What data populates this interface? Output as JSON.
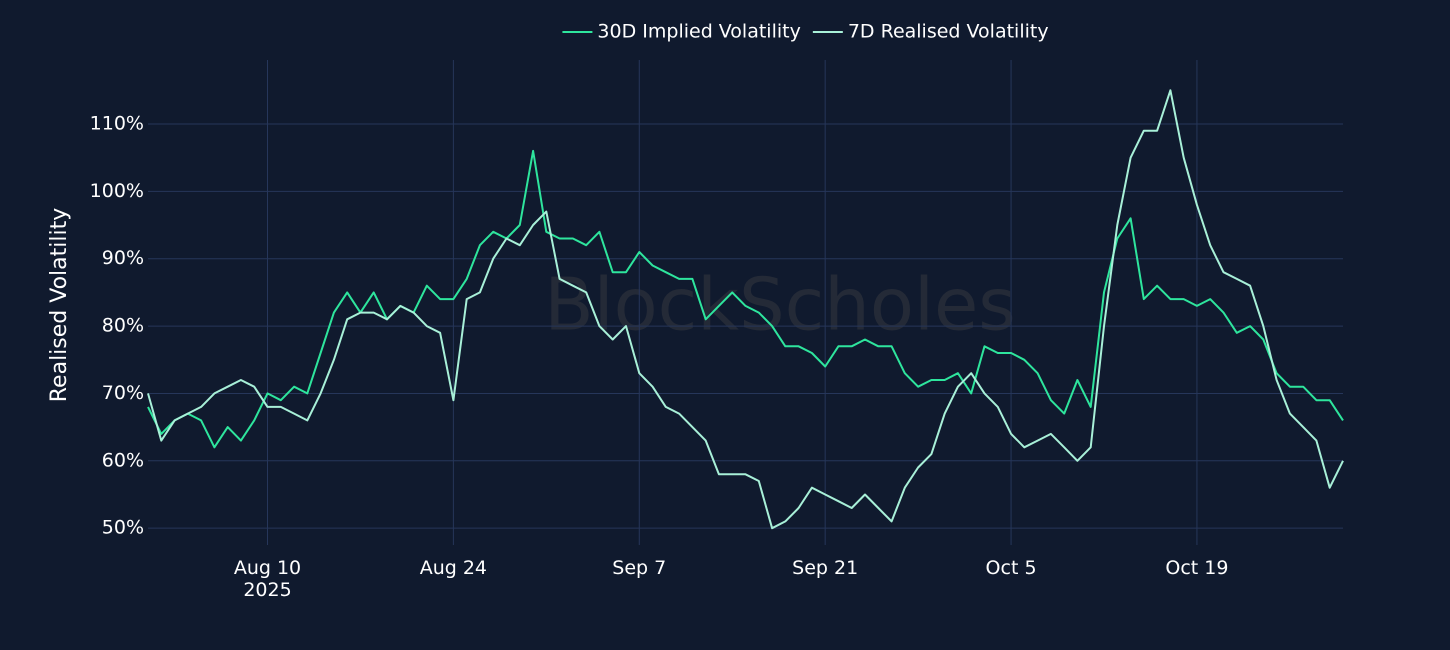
{
  "chart_data": {
    "type": "line",
    "y_axis_label": "Realised Volatility",
    "watermark": "BlockScholes",
    "legend": "top",
    "grid": true,
    "xlim": [
      "2025-08-01",
      "2025-10-30"
    ],
    "xticks": [
      {
        "value": "2025-08-10",
        "label": "Aug 10\n2025"
      },
      {
        "value": "2025-08-24",
        "label": "Aug 24"
      },
      {
        "value": "2025-09-07",
        "label": "Sep 7"
      },
      {
        "value": "2025-09-21",
        "label": "Sep 21"
      },
      {
        "value": "2025-10-05",
        "label": "Oct 5"
      },
      {
        "value": "2025-10-19",
        "label": "Oct 19"
      }
    ],
    "ylim": [
      47.5,
      119.5
    ],
    "yticks": [
      {
        "value": 50,
        "label": "50%"
      },
      {
        "value": 60,
        "label": "60%"
      },
      {
        "value": 70,
        "label": "70%"
      },
      {
        "value": 80,
        "label": "80%"
      },
      {
        "value": 90,
        "label": "90%"
      },
      {
        "value": 100,
        "label": "100%"
      },
      {
        "value": 110,
        "label": "110%"
      }
    ],
    "x": [
      "2025-08-01",
      "2025-08-02",
      "2025-08-03",
      "2025-08-04",
      "2025-08-05",
      "2025-08-06",
      "2025-08-07",
      "2025-08-08",
      "2025-08-09",
      "2025-08-10",
      "2025-08-11",
      "2025-08-12",
      "2025-08-13",
      "2025-08-14",
      "2025-08-15",
      "2025-08-16",
      "2025-08-17",
      "2025-08-18",
      "2025-08-19",
      "2025-08-20",
      "2025-08-21",
      "2025-08-22",
      "2025-08-23",
      "2025-08-24",
      "2025-08-25",
      "2025-08-26",
      "2025-08-27",
      "2025-08-28",
      "2025-08-29",
      "2025-08-30",
      "2025-08-31",
      "2025-09-01",
      "2025-09-02",
      "2025-09-03",
      "2025-09-04",
      "2025-09-05",
      "2025-09-06",
      "2025-09-07",
      "2025-09-08",
      "2025-09-09",
      "2025-09-10",
      "2025-09-11",
      "2025-09-12",
      "2025-09-13",
      "2025-09-14",
      "2025-09-15",
      "2025-09-16",
      "2025-09-17",
      "2025-09-18",
      "2025-09-19",
      "2025-09-20",
      "2025-09-21",
      "2025-09-22",
      "2025-09-23",
      "2025-09-24",
      "2025-09-25",
      "2025-09-26",
      "2025-09-27",
      "2025-09-28",
      "2025-09-29",
      "2025-09-30",
      "2025-10-01",
      "2025-10-02",
      "2025-10-03",
      "2025-10-04",
      "2025-10-05",
      "2025-10-06",
      "2025-10-07",
      "2025-10-08",
      "2025-10-09",
      "2025-10-10",
      "2025-10-11",
      "2025-10-12",
      "2025-10-13",
      "2025-10-14",
      "2025-10-15",
      "2025-10-16",
      "2025-10-17",
      "2025-10-18",
      "2025-10-19",
      "2025-10-20",
      "2025-10-21",
      "2025-10-22",
      "2025-10-23",
      "2025-10-24",
      "2025-10-25",
      "2025-10-26",
      "2025-10-27",
      "2025-10-28",
      "2025-10-29",
      "2025-10-30"
    ],
    "series": [
      {
        "name": "30D Implied Volatility",
        "color": "#2ee59d",
        "values": [
          68,
          64,
          66,
          67,
          66,
          62,
          65,
          63,
          66,
          70,
          69,
          71,
          70,
          76,
          82,
          85,
          82,
          85,
          81,
          83,
          82,
          86,
          84,
          84,
          87,
          92,
          94,
          93,
          95,
          106,
          94,
          93,
          93,
          92,
          94,
          88,
          88,
          91,
          89,
          88,
          87,
          87,
          81,
          83,
          85,
          83,
          82,
          80,
          77,
          77,
          76,
          74,
          77,
          77,
          78,
          77,
          77,
          73,
          71,
          72,
          72,
          73,
          70,
          77,
          76,
          76,
          75,
          73,
          69,
          67,
          72,
          68,
          85,
          93,
          96,
          84,
          86,
          84,
          84,
          83,
          84,
          82,
          79,
          80,
          78,
          73,
          71,
          71,
          69,
          69,
          66
        ]
      },
      {
        "name": "7D Realised Volatility",
        "color": "#a8f0d8",
        "values": [
          70,
          63,
          66,
          67,
          68,
          70,
          71,
          72,
          71,
          68,
          68,
          67,
          66,
          70,
          75,
          81,
          82,
          82,
          81,
          83,
          82,
          80,
          79,
          69,
          84,
          85,
          90,
          93,
          92,
          95,
          97,
          87,
          86,
          85,
          80,
          78,
          80,
          73,
          71,
          68,
          67,
          65,
          63,
          58,
          58,
          58,
          57,
          50,
          51,
          53,
          56,
          55,
          54,
          53,
          55,
          53,
          51,
          56,
          59,
          61,
          67,
          71,
          73,
          70,
          68,
          64,
          62,
          63,
          64,
          62,
          60,
          62,
          80,
          95,
          105,
          109,
          109,
          115,
          105,
          98,
          92,
          88,
          87,
          86,
          80,
          72,
          67,
          65,
          63,
          56,
          60
        ]
      }
    ]
  }
}
